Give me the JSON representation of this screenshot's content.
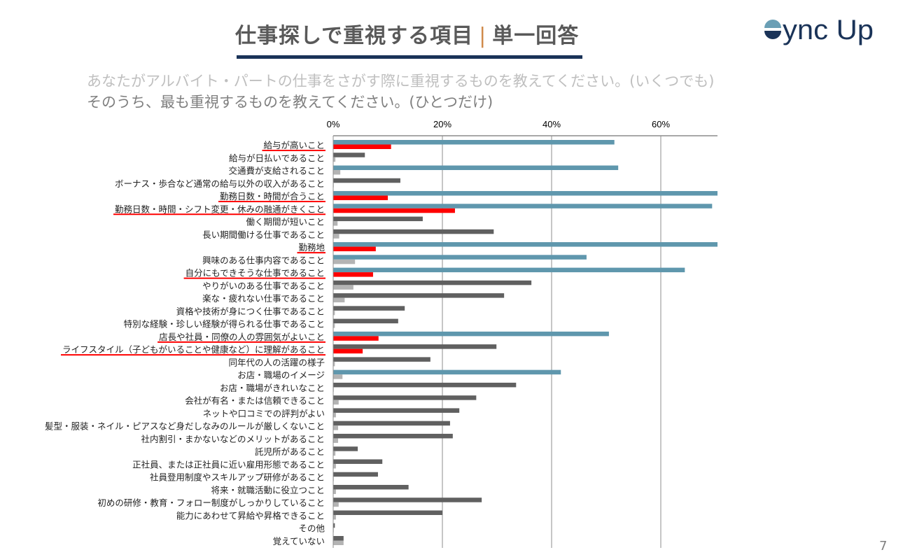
{
  "header": {
    "title_main": "仕事探しで重視する項目",
    "title_separator": "|",
    "title_sub": "単一回答",
    "logo_text": "Sync Up"
  },
  "questions": {
    "q1": "あなたがアルバイト・パートの仕事をさがす際に重視するものを教えてください。(いくつでも)",
    "q2": "そのうち、最も重視するものを教えてください。(ひとつだけ)"
  },
  "page_number": "7",
  "colors": {
    "multi_highlight": "#5f97ad",
    "multi_default": "#606060",
    "single_highlight": "#ff0000",
    "single_default": "#b4b4b4",
    "underline": "#ff0000",
    "title_rule": "#1a3358"
  },
  "chart_data": {
    "type": "bar",
    "orientation": "horizontal",
    "xlim": [
      0,
      70
    ],
    "x_ticks": [
      "0%",
      "20%",
      "40%",
      "60%"
    ],
    "x_tick_values": [
      0,
      20,
      40,
      60
    ],
    "grid": true,
    "legend": "none",
    "categories": [
      "給与が高いこと",
      "給与が日払いであること",
      "交通費が支給されること",
      "ボーナス・歩合など通常の給与以外の収入があること",
      "勤務日数・時間が合うこと",
      "勤務日数・時間・シフト変更・休みの融通がきくこと",
      "働く期間が短いこと",
      "長い期間働ける仕事であること",
      "勤務地",
      "興味のある仕事内容であること",
      "自分にもできそうな仕事であること",
      "やりがいのある仕事であること",
      "楽な・疲れない仕事であること",
      "資格や技術が身につく仕事であること",
      "特別な経験・珍しい経験が得られる仕事であること",
      "店長や社員・同僚の人の雰囲気がよいこと",
      "ライフスタイル（子どもがいることや健康など）に理解があること",
      "同年代の人の活躍の様子",
      "お店・職場のイメージ",
      "お店・職場がきれいなこと",
      "会社が有名・または信頼できること",
      "ネットや口コミでの評判がよい",
      "髪型・服装・ネイル・ピアスなど身だしなみのルールが厳しくないこと",
      "社内割引・まかないなどのメリットがあること",
      "託児所があること",
      "正社員、または正社員に近い雇用形態であること",
      "社員登用制度やスキルアップ研修があること",
      "将来・就職活動に役立つこと",
      "初めの研修・教育・フォロー制度がしっかりしていること",
      "能力にあわせて昇給や昇格できること",
      "その他",
      "覚えていない"
    ],
    "series": [
      {
        "values": [
          51.5,
          5.8,
          52.2,
          12.3,
          71.0,
          69.4,
          16.4,
          29.4,
          71.0,
          46.4,
          64.4,
          36.3,
          31.3,
          13.1,
          11.9,
          50.5,
          29.9,
          17.8,
          41.7,
          33.5,
          26.2,
          23.1,
          21.4,
          21.9,
          4.5,
          9.0,
          8.2,
          13.8,
          27.2,
          20.0,
          0.3,
          1.9
        ],
        "highlighted": [
          0,
          2,
          4,
          5,
          8,
          9,
          10,
          15,
          18
        ]
      },
      {
        "values": [
          10.6,
          0.4,
          1.3,
          0.1,
          10.0,
          22.3,
          0.8,
          1.1,
          7.8,
          4.0,
          7.3,
          3.7,
          2.1,
          0.3,
          0.3,
          8.3,
          5.4,
          0.3,
          1.7,
          0.1,
          1.0,
          0.5,
          0.9,
          0.9,
          0.4,
          0.5,
          0.1,
          0.5,
          1.0,
          0.5,
          0.1,
          1.9
        ],
        "highlighted": [
          0,
          4,
          5,
          8,
          10,
          15,
          16
        ]
      }
    ],
    "underlined_categories": [
      0,
      4,
      5,
      8,
      10,
      15,
      16
    ]
  }
}
